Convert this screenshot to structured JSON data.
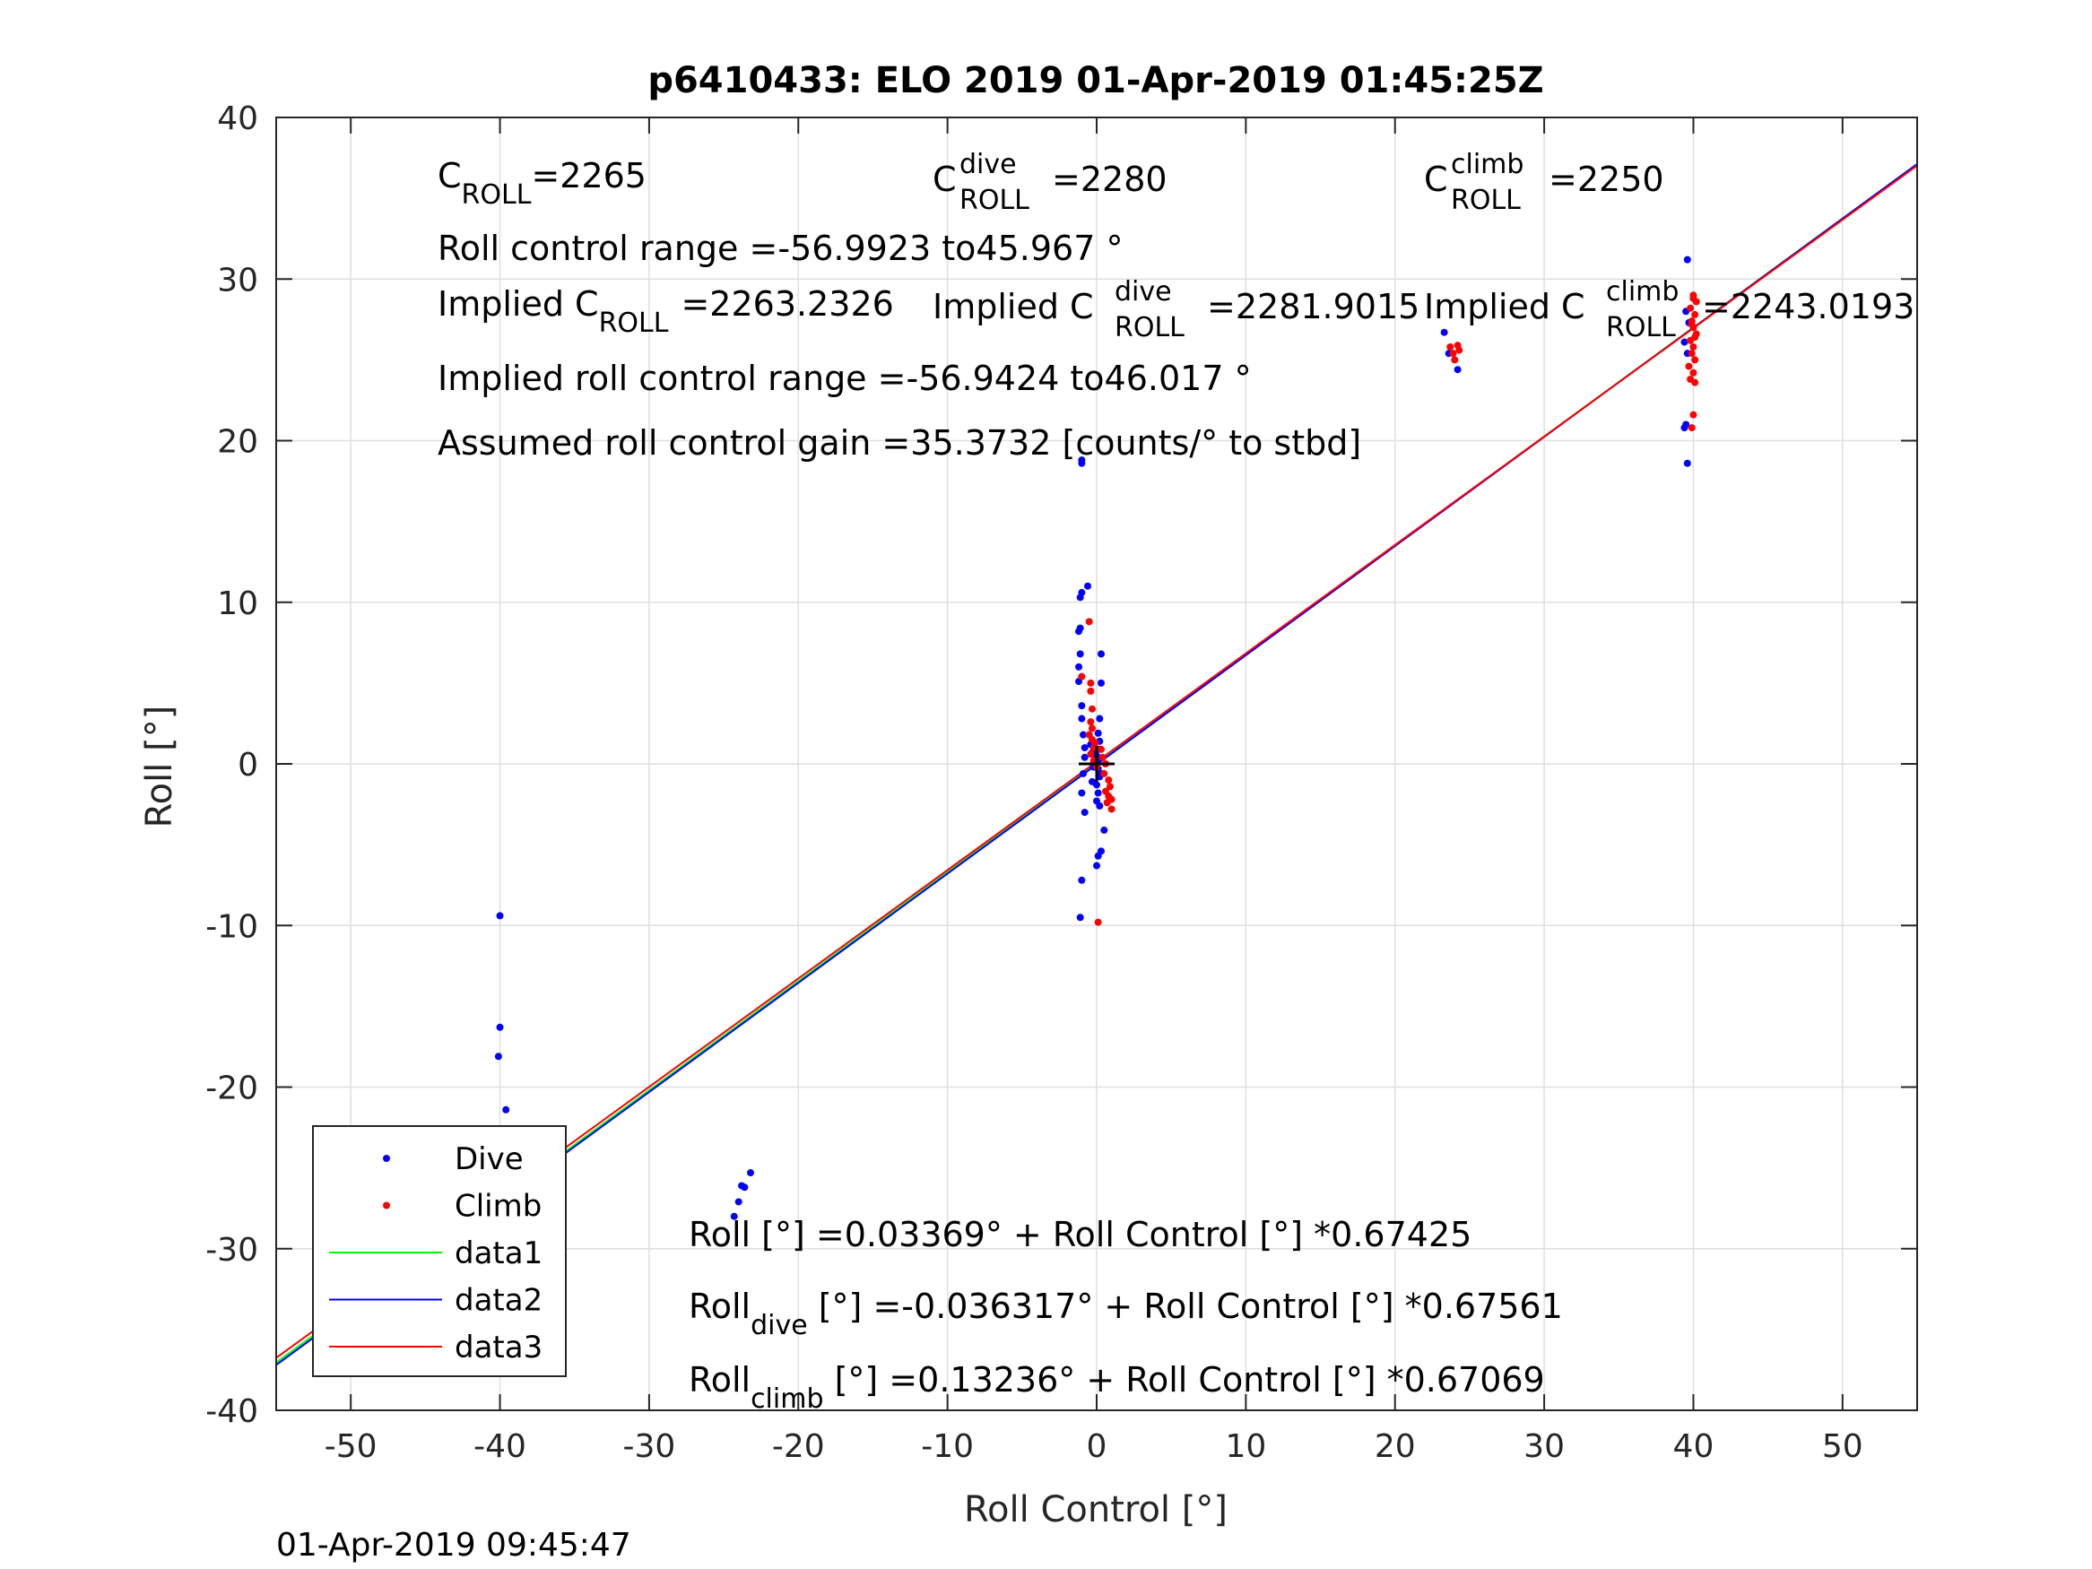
{
  "chart_data": {
    "type": "scatter",
    "title": "p6410433: ELO 2019 01-Apr-2019 01:45:25Z",
    "xlabel": "Roll Control [°]",
    "ylabel": "Roll [°]",
    "xlim": [
      -55,
      55
    ],
    "ylim": [
      -40,
      40
    ],
    "grid": true,
    "x_ticks": [
      -50,
      -40,
      -30,
      -20,
      -10,
      0,
      10,
      20,
      30,
      40,
      50
    ],
    "x_tick_labels": [
      "-50",
      "-40",
      "-30",
      "-20",
      "-10",
      "0",
      "10",
      "20",
      "30",
      "40",
      "50"
    ],
    "y_ticks": [
      -40,
      -30,
      -20,
      -10,
      0,
      10,
      20,
      30,
      40
    ],
    "y_tick_labels": [
      "-40",
      "-30",
      "-20",
      "-10",
      "0",
      "10",
      "20",
      "30",
      "40"
    ],
    "legend_placement": "bottom-left",
    "legend": [
      "Dive",
      "Climb",
      "data1",
      "data2",
      "data3"
    ],
    "colors": {
      "dive": "#0000ff",
      "climb": "#ff0000",
      "data1": "#00ff00",
      "data2": "#0000ff",
      "data3": "#ff0000",
      "grid": "#dfdfdf",
      "axis": "#262626"
    },
    "center_marker": {
      "x": 0,
      "y": 0
    },
    "series": [
      {
        "name": "Dive",
        "type": "scatter",
        "points": [
          [
            -40,
            -9.4
          ],
          [
            -40,
            -16.3
          ],
          [
            -40.1,
            -18.1
          ],
          [
            -39.6,
            -21.4
          ],
          [
            -39.9,
            -22.6
          ],
          [
            -40,
            -26.1
          ],
          [
            -39.8,
            -26.3
          ],
          [
            -40.2,
            -26.5
          ],
          [
            -39.6,
            -26.6
          ],
          [
            -40,
            -27
          ],
          [
            -39.8,
            -27.4
          ],
          [
            -39.5,
            -27.7
          ],
          [
            -40,
            -28
          ],
          [
            -39.7,
            -28.3
          ],
          [
            -40.1,
            -28.1
          ],
          [
            -39.8,
            -26.8
          ],
          [
            -40.3,
            -27.6
          ],
          [
            -39.6,
            -27.1
          ],
          [
            -40.2,
            -30.2
          ],
          [
            -23.2,
            -25.3
          ],
          [
            -23.6,
            -26.2
          ],
          [
            -24.0,
            -27.1
          ],
          [
            -24.3,
            -28.0
          ],
          [
            -23.8,
            -26.1
          ],
          [
            -1.0,
            18.6
          ],
          [
            -1.0,
            18.8
          ],
          [
            -0.6,
            11.0
          ],
          [
            -1.0,
            10.6
          ],
          [
            -1.1,
            10.3
          ],
          [
            -1.2,
            8.2
          ],
          [
            -1.1,
            8.4
          ],
          [
            -1.1,
            6.8
          ],
          [
            -1.2,
            6.0
          ],
          [
            -1.2,
            5.1
          ],
          [
            -1.0,
            3.6
          ],
          [
            -1.0,
            2.8
          ],
          [
            -0.9,
            1.8
          ],
          [
            -0.8,
            1.0
          ],
          [
            -0.8,
            0.4
          ],
          [
            -0.9,
            -0.6
          ],
          [
            -1.0,
            -1.8
          ],
          [
            -0.8,
            -3.0
          ],
          [
            -1.0,
            -7.2
          ],
          [
            -1.1,
            -9.5
          ],
          [
            0.3,
            6.8
          ],
          [
            0.3,
            5.0
          ],
          [
            0.2,
            2.8
          ],
          [
            0.1,
            1.9
          ],
          [
            0.2,
            1.4
          ],
          [
            0.1,
            0.9
          ],
          [
            0.0,
            0.5
          ],
          [
            0.0,
            0.2
          ],
          [
            0.1,
            -0.3
          ],
          [
            0.2,
            -0.8
          ],
          [
            0.0,
            -1.3
          ],
          [
            0.1,
            -1.8
          ],
          [
            0.0,
            -2.3
          ],
          [
            0.2,
            -2.6
          ],
          [
            0.5,
            -4.1
          ],
          [
            0.3,
            -5.4
          ],
          [
            0.1,
            -5.7
          ],
          [
            0.0,
            -6.3
          ],
          [
            -0.3,
            0.7
          ],
          [
            -0.2,
            -0.2
          ],
          [
            -0.4,
            1.2
          ],
          [
            -0.3,
            -1.1
          ],
          [
            0.2,
            0.3
          ],
          [
            0.3,
            -0.6
          ],
          [
            23.3,
            26.7
          ],
          [
            23.6,
            25.4
          ],
          [
            24.2,
            24.4
          ],
          [
            39.6,
            31.2
          ],
          [
            39.5,
            28.0
          ],
          [
            39.7,
            27.3
          ],
          [
            39.4,
            26.1
          ],
          [
            39.6,
            25.4
          ],
          [
            39.5,
            21.0
          ],
          [
            39.4,
            20.8
          ],
          [
            39.6,
            18.6
          ]
        ]
      },
      {
        "name": "Climb",
        "type": "scatter",
        "points": [
          [
            -0.5,
            8.8
          ],
          [
            -1.0,
            5.4
          ],
          [
            -0.4,
            5.0
          ],
          [
            -0.4,
            4.5
          ],
          [
            -0.3,
            3.4
          ],
          [
            -0.4,
            2.6
          ],
          [
            -0.3,
            2.2
          ],
          [
            -0.5,
            1.8
          ],
          [
            -0.3,
            1.5
          ],
          [
            -0.2,
            1.0
          ],
          [
            -0.4,
            0.6
          ],
          [
            -0.2,
            0.2
          ],
          [
            0.0,
            -0.2
          ],
          [
            0.5,
            -0.6
          ],
          [
            0.8,
            -1.0
          ],
          [
            0.9,
            -1.4
          ],
          [
            0.6,
            -1.7
          ],
          [
            0.8,
            -2.0
          ],
          [
            1.0,
            -2.2
          ],
          [
            0.7,
            -2.4
          ],
          [
            1.0,
            -2.8
          ],
          [
            0.1,
            -9.8
          ],
          [
            0.4,
            0.4
          ],
          [
            0.6,
            0.0
          ],
          [
            0.3,
            0.9
          ],
          [
            -0.1,
            1.3
          ],
          [
            23.7,
            25.8
          ],
          [
            23.9,
            25.4
          ],
          [
            24.2,
            25.9
          ],
          [
            24.0,
            25.0
          ],
          [
            24.3,
            25.6
          ],
          [
            40.0,
            29.0
          ],
          [
            40.2,
            28.6
          ],
          [
            39.8,
            28.2
          ],
          [
            40.1,
            27.8
          ],
          [
            39.9,
            27.4
          ],
          [
            40.0,
            27.0
          ],
          [
            40.2,
            26.6
          ],
          [
            39.8,
            26.2
          ],
          [
            40.0,
            25.8
          ],
          [
            39.9,
            25.4
          ],
          [
            40.1,
            25.0
          ],
          [
            39.7,
            24.6
          ],
          [
            40.0,
            24.2
          ],
          [
            39.8,
            23.8
          ],
          [
            40.1,
            23.6
          ],
          [
            40.0,
            21.6
          ],
          [
            39.9,
            20.8
          ],
          [
            40.0,
            28.8
          ],
          [
            39.9,
            27.2
          ],
          [
            40.1,
            26.4
          ]
        ]
      },
      {
        "name": "data1",
        "type": "line",
        "intercept": 0.03369,
        "slope": 0.67425
      },
      {
        "name": "data2",
        "type": "line",
        "intercept": -0.036317,
        "slope": 0.67561
      },
      {
        "name": "data3",
        "type": "line",
        "intercept": 0.13236,
        "slope": 0.67069
      }
    ],
    "annotations": {
      "c_roll": {
        "base": "C",
        "sub": "ROLL",
        "value": "=2265"
      },
      "c_roll_dive": {
        "base": "C",
        "sup": "dive",
        "sub": "ROLL",
        "value": "=2280"
      },
      "c_roll_climb": {
        "base": "C",
        "sup": "climb",
        "sub": "ROLL",
        "value": "=2250"
      },
      "roll_control_range": "Roll control range =-56.9923 to45.967 °",
      "implied_c_roll": {
        "prefix": "Implied C",
        "sub": "ROLL",
        "value": "=2263.2326"
      },
      "implied_c_roll_dive": {
        "prefix": "Implied C",
        "sup": "dive",
        "sub": "ROLL",
        "value": "=2281.9015"
      },
      "implied_c_roll_climb": {
        "prefix": "Implied C",
        "sup": "climb",
        "sub": "ROLL",
        "value": "=2243.0193"
      },
      "implied_range": "Implied roll control range =-56.9424 to46.017 °",
      "assumed_gain": "Assumed roll control gain =35.3732 [counts/° to stbd]",
      "fit_all": "Roll [°] =0.03369° + Roll Control [°] *0.67425",
      "fit_dive": {
        "base": "Roll",
        "sub": "dive",
        "value": " [°] =-0.036317° + Roll Control [°] *0.67561"
      },
      "fit_climb": {
        "base": "Roll",
        "sub": "climb",
        "value": " [°] =0.13236° + Roll Control [°] *0.67069"
      }
    }
  },
  "timestamp": "01-Apr-2019 09:45:47"
}
